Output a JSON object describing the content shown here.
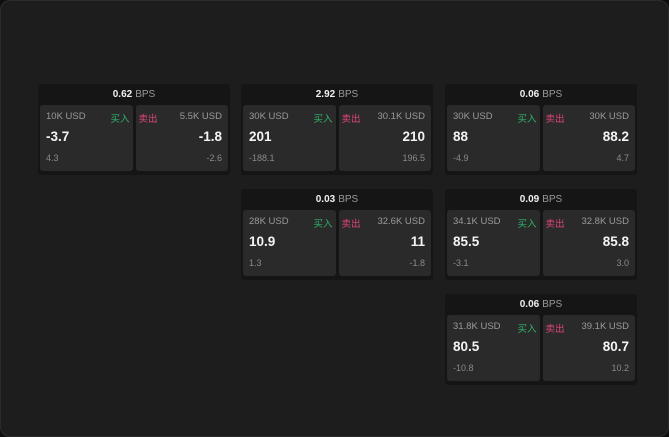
{
  "unit": "BPS",
  "buy_label": "买入",
  "sell_label": "卖出",
  "colors": {
    "buy": "#2fb36a",
    "sell": "#e0457a"
  },
  "widgets": [
    {
      "spread": "0.62",
      "bid": {
        "size": "10K USD",
        "price": "-3.7",
        "change": "4.3"
      },
      "ask": {
        "size": "5.5K USD",
        "price": "-1.8",
        "change": "-2.6"
      }
    },
    {
      "spread": "2.92",
      "bid": {
        "size": "30K USD",
        "price": "201",
        "change": "-188.1"
      },
      "ask": {
        "size": "30.1K USD",
        "price": "210",
        "change": "196.5"
      }
    },
    {
      "spread": "0.06",
      "bid": {
        "size": "30K USD",
        "price": "88",
        "change": "-4.9"
      },
      "ask": {
        "size": "30K USD",
        "price": "88.2",
        "change": "4.7"
      }
    },
    {
      "spread": "0.03",
      "bid": {
        "size": "28K USD",
        "price": "10.9",
        "change": "1.3"
      },
      "ask": {
        "size": "32.6K USD",
        "price": "11",
        "change": "-1.8"
      }
    },
    {
      "spread": "0.09",
      "bid": {
        "size": "34.1K USD",
        "price": "85.5",
        "change": "-3.1"
      },
      "ask": {
        "size": "32.8K USD",
        "price": "85.8",
        "change": "3.0"
      }
    },
    {
      "spread": "0.06",
      "bid": {
        "size": "31.8K USD",
        "price": "80.5",
        "change": "-10.8"
      },
      "ask": {
        "size": "39.1K USD",
        "price": "80.7",
        "change": "10.2"
      }
    }
  ]
}
